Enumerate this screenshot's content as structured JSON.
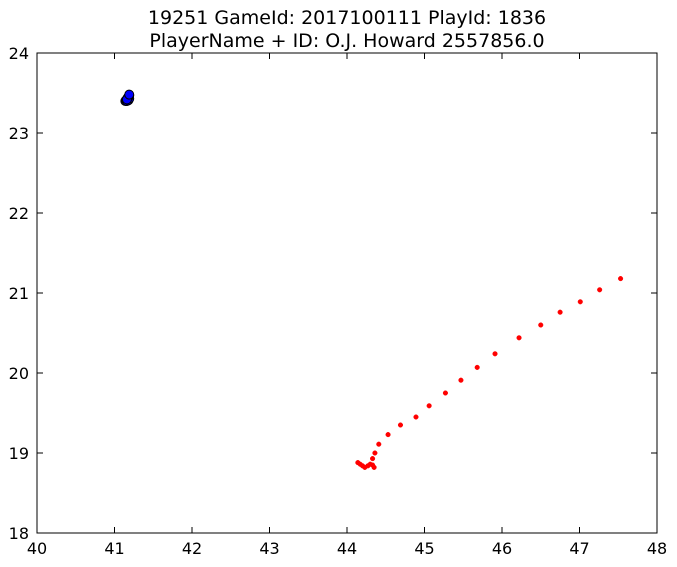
{
  "chart_data": {
    "type": "scatter",
    "title_line1": "19251 GameId: 2017100111 PlayId: 1836",
    "title_line2": "PlayerName + ID: O.J. Howard 2557856.0",
    "xlabel": "",
    "ylabel": "",
    "xlim": [
      40,
      48
    ],
    "ylim": [
      18,
      24
    ],
    "xticks": [
      40,
      41,
      42,
      43,
      44,
      45,
      46,
      47,
      48
    ],
    "yticks": [
      18,
      19,
      20,
      21,
      22,
      23,
      24
    ],
    "grid": false,
    "series": [
      {
        "name": "player_track",
        "color": "#ff0000",
        "marker": "small-dot",
        "points": [
          [
            44.14,
            18.88
          ],
          [
            44.17,
            18.86
          ],
          [
            44.2,
            18.84
          ],
          [
            44.23,
            18.82
          ],
          [
            44.27,
            18.84
          ],
          [
            44.3,
            18.86
          ],
          [
            44.33,
            18.85
          ],
          [
            44.35,
            18.82
          ],
          [
            44.33,
            18.93
          ],
          [
            44.36,
            19.0
          ],
          [
            44.41,
            19.11
          ],
          [
            44.53,
            19.23
          ],
          [
            44.69,
            19.35
          ],
          [
            44.89,
            19.45
          ],
          [
            45.06,
            19.59
          ],
          [
            45.27,
            19.75
          ],
          [
            45.47,
            19.91
          ],
          [
            45.68,
            20.07
          ],
          [
            45.91,
            20.24
          ],
          [
            46.22,
            20.44
          ],
          [
            46.5,
            20.6
          ],
          [
            46.75,
            20.76
          ],
          [
            47.01,
            20.89
          ],
          [
            47.26,
            21.04
          ],
          [
            47.53,
            21.18
          ]
        ]
      },
      {
        "name": "ball_position",
        "color": "#0000ff",
        "marker": "large-dot",
        "points": [
          [
            41.14,
            23.4
          ],
          [
            41.15,
            23.41
          ],
          [
            41.16,
            23.4
          ],
          [
            41.17,
            23.42
          ],
          [
            41.18,
            23.41
          ],
          [
            41.19,
            23.43
          ],
          [
            41.18,
            23.45
          ],
          [
            41.19,
            23.47
          ],
          [
            41.17,
            23.44
          ],
          [
            41.16,
            23.42
          ],
          [
            41.19,
            23.48
          ]
        ]
      }
    ]
  }
}
